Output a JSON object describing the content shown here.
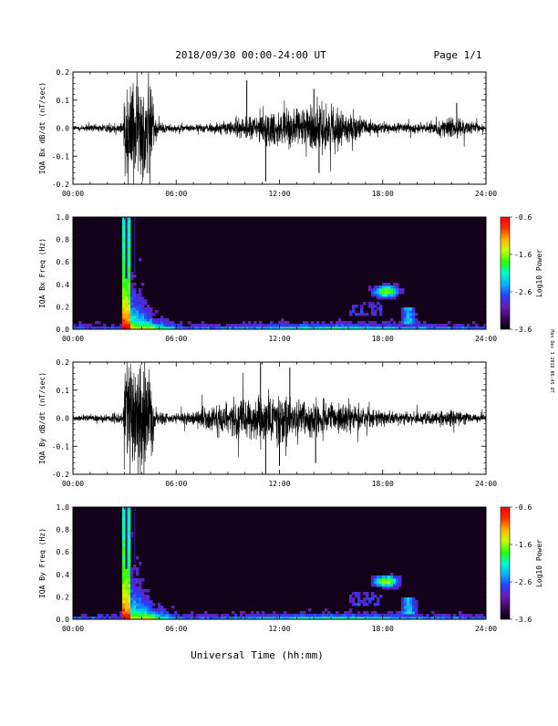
{
  "header": {
    "date_range": "2018/09/30  00:00-24:00 UT",
    "page": "Page 1/1"
  },
  "footer": {
    "xlabel": "Universal Time (hh:mm)",
    "side_note": "Mon Dec 3 2018 06:45 UT"
  },
  "colors": {
    "trace": "#000000",
    "spectrogram_background": "#130019",
    "colorbar_stops": [
      "#000000",
      "#3a0a5a",
      "#6a1bb0",
      "#2a3cff",
      "#00b4ff",
      "#00ffc8",
      "#28ff00",
      "#c8ff00",
      "#ffb400",
      "#ff3000",
      "#ff0000"
    ]
  },
  "chart_data": [
    {
      "type": "line",
      "ylabel": "IQA Bx dB/dt (nT/sec)",
      "xlim": [
        0,
        24
      ],
      "ylim": [
        -0.2,
        0.2
      ],
      "x_ticks": [
        "00:00",
        "06:00",
        "12:00",
        "18:00",
        "24:00"
      ],
      "y_ticks": [
        "0.2",
        "0.1",
        "0.0",
        "-0.1",
        "-0.2"
      ],
      "envelope": {
        "hours": [
          0,
          1,
          2,
          2.9,
          3.0,
          3.5,
          4.6,
          4.8,
          5.5,
          6,
          7,
          8,
          9,
          10,
          11,
          12,
          13,
          14,
          15,
          16,
          17,
          18,
          19,
          20,
          21,
          22,
          23,
          24
        ],
        "amplitude": [
          0.012,
          0.014,
          0.017,
          0.025,
          0.2,
          0.2,
          0.2,
          0.03,
          0.016,
          0.014,
          0.013,
          0.018,
          0.028,
          0.04,
          0.06,
          0.075,
          0.07,
          0.1,
          0.085,
          0.05,
          0.035,
          0.022,
          0.018,
          0.02,
          0.022,
          0.04,
          0.025,
          0.015
        ]
      },
      "spikes": [
        {
          "t": 11.2,
          "v": -0.19
        },
        {
          "t": 14.0,
          "v": 0.14
        },
        {
          "t": 14.3,
          "v": -0.16
        },
        {
          "t": 10.1,
          "v": 0.17
        },
        {
          "t": 22.3,
          "v": 0.09
        }
      ]
    },
    {
      "type": "heatmap",
      "ylabel": "IQA Bx Freq (Hz)",
      "xlim": [
        0,
        24
      ],
      "ylim": [
        0.0,
        1.0
      ],
      "x_ticks": [
        "00:00",
        "06:00",
        "12:00",
        "18:00",
        "24:00"
      ],
      "y_ticks": [
        "1.0",
        "0.8",
        "0.6",
        "0.4",
        "0.2",
        "0.0"
      ],
      "colorbar": {
        "label": "Log10 Power",
        "range": [
          -3.6,
          -0.6
        ],
        "ticks": [
          "-0.6",
          "-1.6",
          "-2.6",
          "-3.6"
        ]
      }
    },
    {
      "type": "line",
      "ylabel": "IQA By dB/dt (nT/sec)",
      "xlim": [
        0,
        24
      ],
      "ylim": [
        -0.2,
        0.2
      ],
      "x_ticks": [
        "00:00",
        "06:00",
        "12:00",
        "18:00",
        "24:00"
      ],
      "y_ticks": [
        "0.2",
        "0.1",
        "0.0",
        "-0.1",
        "-0.2"
      ],
      "envelope": {
        "hours": [
          0,
          1,
          2,
          2.9,
          3.0,
          3.5,
          4.6,
          4.8,
          5.5,
          6,
          7,
          8,
          9,
          10,
          11,
          12,
          13,
          14,
          15,
          16,
          17,
          18,
          19,
          20,
          21,
          22,
          23,
          24
        ],
        "amplitude": [
          0.01,
          0.012,
          0.015,
          0.022,
          0.2,
          0.2,
          0.2,
          0.03,
          0.02,
          0.02,
          0.03,
          0.05,
          0.065,
          0.08,
          0.1,
          0.09,
          0.08,
          0.07,
          0.06,
          0.05,
          0.04,
          0.03,
          0.025,
          0.022,
          0.025,
          0.03,
          0.02,
          0.012
        ]
      },
      "spikes": [
        {
          "t": 10.9,
          "v": 0.2
        },
        {
          "t": 11.2,
          "v": -0.2
        },
        {
          "t": 12.6,
          "v": 0.18
        },
        {
          "t": 14.1,
          "v": -0.16
        },
        {
          "t": 12.0,
          "v": -0.17
        }
      ]
    },
    {
      "type": "heatmap",
      "ylabel": "IQA By Freq (Hz)",
      "xlim": [
        0,
        24
      ],
      "ylim": [
        0.0,
        1.0
      ],
      "x_ticks": [
        "00:00",
        "06:00",
        "12:00",
        "18:00",
        "24:00"
      ],
      "y_ticks": [
        "1.0",
        "0.8",
        "0.6",
        "0.4",
        "0.2",
        "0.0"
      ],
      "colorbar": {
        "label": "Log10 Power",
        "range": [
          -3.6,
          -0.6
        ],
        "ticks": [
          "-0.6",
          "-1.6",
          "-2.6",
          "-3.6"
        ]
      }
    }
  ]
}
